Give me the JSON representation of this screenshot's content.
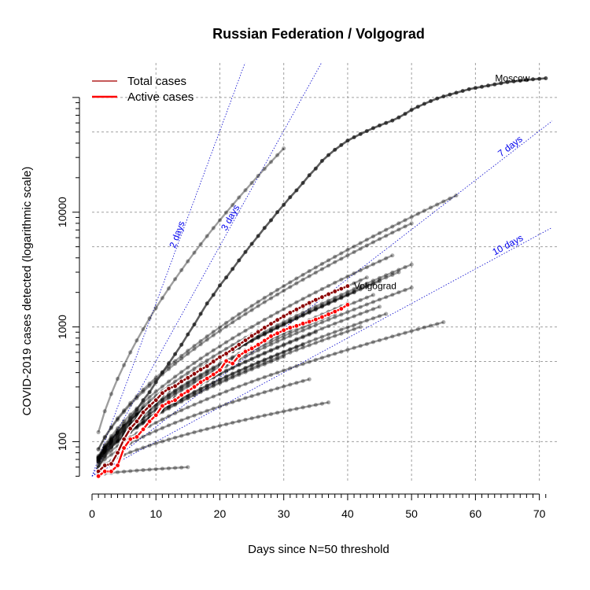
{
  "chart_data": {
    "type": "line",
    "title": "Russian Federation / Volgograd",
    "xlabel": "Days since N=50 threshold",
    "ylabel": "COVID-2019 cases detected (logarithmic scale)",
    "xlim": [
      0,
      73
    ],
    "ylim": [
      45,
      200000
    ],
    "y_scale": "log",
    "grid": true,
    "x_ticks": [
      0,
      10,
      20,
      30,
      40,
      50,
      60,
      70
    ],
    "y_ticks": [
      100,
      1000,
      10000
    ],
    "legend_position": "top-left",
    "legend": [
      {
        "label": "Total cases",
        "color": "#b22222"
      },
      {
        "label": "Active cases",
        "color": "#ff0000"
      }
    ],
    "doubling_guides": [
      {
        "label": "2 days",
        "days": 2
      },
      {
        "label": "3 days",
        "days": 3
      },
      {
        "label": "7 days",
        "days": 7
      },
      {
        "label": "10 days",
        "days": 10
      }
    ],
    "series": [
      {
        "name": "Total cases",
        "region_label": "Volgograd",
        "color": "#8b0000",
        "x": [
          1,
          2,
          3,
          4,
          5,
          6,
          7,
          8,
          9,
          10,
          11,
          12,
          13,
          14,
          15,
          16,
          17,
          18,
          19,
          20,
          21,
          22,
          23,
          24,
          25,
          26,
          27,
          28,
          29,
          30,
          31,
          32,
          33,
          34,
          35,
          36,
          37,
          38,
          39,
          40
        ],
        "y": [
          55,
          62,
          64,
          80,
          105,
          130,
          150,
          180,
          205,
          230,
          265,
          290,
          305,
          335,
          360,
          390,
          425,
          455,
          500,
          545,
          585,
          640,
          700,
          765,
          835,
          905,
          985,
          1065,
          1150,
          1240,
          1330,
          1420,
          1520,
          1620,
          1720,
          1820,
          1930,
          2040,
          2150,
          2270
        ]
      },
      {
        "name": "Active cases",
        "color": "#ff0000",
        "x": [
          1,
          2,
          3,
          4,
          5,
          6,
          7,
          8,
          9,
          10,
          11,
          12,
          13,
          14,
          15,
          16,
          17,
          18,
          19,
          20,
          21,
          22,
          23,
          24,
          25,
          26,
          27,
          28,
          29,
          30,
          31,
          32,
          33,
          34,
          35,
          36,
          37,
          38,
          39,
          40
        ],
        "y": [
          50,
          55,
          55,
          62,
          88,
          105,
          110,
          128,
          150,
          170,
          205,
          220,
          230,
          255,
          275,
          300,
          330,
          355,
          385,
          420,
          505,
          480,
          560,
          610,
          650,
          700,
          760,
          830,
          880,
          935,
          985,
          1020,
          1070,
          1110,
          1160,
          1220,
          1290,
          1360,
          1440,
          1560
        ]
      },
      {
        "name": "Moscow",
        "region_label": "Moscow",
        "color": "#333333",
        "x": [
          1,
          2,
          3,
          4,
          5,
          6,
          7,
          8,
          9,
          10,
          11,
          12,
          13,
          14,
          15,
          16,
          17,
          18,
          19,
          20,
          21,
          22,
          23,
          24,
          25,
          26,
          27,
          28,
          29,
          30,
          31,
          32,
          33,
          34,
          35,
          36,
          37,
          38,
          39,
          40,
          41,
          42,
          43,
          44,
          45,
          46,
          47,
          48,
          49,
          50,
          51,
          52,
          53,
          54,
          55,
          56,
          57,
          58,
          59,
          60,
          61,
          62,
          63,
          64,
          65,
          66,
          67,
          68,
          69,
          70,
          71
        ],
        "y": [
          60,
          75,
          90,
          110,
          130,
          160,
          190,
          230,
          270,
          330,
          400,
          480,
          580,
          700,
          860,
          1050,
          1300,
          1600,
          1900,
          2300,
          2700,
          3200,
          3800,
          4500,
          5300,
          6200,
          7300,
          8500,
          10000,
          11600,
          13500,
          15500,
          18000,
          21000,
          24000,
          28000,
          31500,
          35000,
          38500,
          42000,
          45000,
          48000,
          51000,
          54000,
          57000,
          60000,
          63000,
          67000,
          72000,
          78000,
          83000,
          88000,
          93000,
          98000,
          102000,
          106000,
          110000,
          114000,
          118000,
          121000,
          124000,
          127000,
          130000,
          133000,
          136000,
          138000,
          140000,
          142000,
          144000,
          145500,
          147000
        ]
      },
      {
        "name": "Others",
        "lines": [
          {
            "x0": 0,
            "y0": 55,
            "days": 30,
            "y_end": 36000
          },
          {
            "x0": 0,
            "y0": 55,
            "days": 57,
            "y_end": 14000
          },
          {
            "x0": 0,
            "y0": 55,
            "days": 50,
            "y_end": 8000
          },
          {
            "x0": 0,
            "y0": 50,
            "days": 47,
            "y_end": 4200
          },
          {
            "x0": 0,
            "y0": 50,
            "days": 50,
            "y_end": 3500
          },
          {
            "x0": 0,
            "y0": 50,
            "days": 48,
            "y_end": 3000
          },
          {
            "x0": 0,
            "y0": 50,
            "days": 45,
            "y_end": 2500
          },
          {
            "x0": 0,
            "y0": 50,
            "days": 50,
            "y_end": 2200
          },
          {
            "x0": 0,
            "y0": 50,
            "days": 44,
            "y_end": 1900
          },
          {
            "x0": 0,
            "y0": 50,
            "days": 55,
            "y_end": 1100
          },
          {
            "x0": 0,
            "y0": 50,
            "days": 40,
            "y_end": 1600
          },
          {
            "x0": 0,
            "y0": 50,
            "days": 38,
            "y_end": 1300
          },
          {
            "x0": 0,
            "y0": 50,
            "days": 42,
            "y_end": 1000
          },
          {
            "x0": 0,
            "y0": 50,
            "days": 35,
            "y_end": 900
          },
          {
            "x0": 0,
            "y0": 50,
            "days": 33,
            "y_end": 700
          },
          {
            "x0": 0,
            "y0": 50,
            "days": 30,
            "y_end": 550
          },
          {
            "x0": 0,
            "y0": 50,
            "days": 34,
            "y_end": 350
          },
          {
            "x0": 0,
            "y0": 50,
            "days": 37,
            "y_end": 220
          },
          {
            "x0": 0,
            "y0": 50,
            "days": 15,
            "y_end": 60
          },
          {
            "x0": 0,
            "y0": 50,
            "days": 45,
            "y_end": 1500
          },
          {
            "x0": 0,
            "y0": 50,
            "days": 46,
            "y_end": 1300
          },
          {
            "x0": 0,
            "y0": 50,
            "days": 43,
            "y_end": 2700
          },
          {
            "x0": 0,
            "y0": 50,
            "days": 41,
            "y_end": 2000
          }
        ]
      }
    ]
  }
}
